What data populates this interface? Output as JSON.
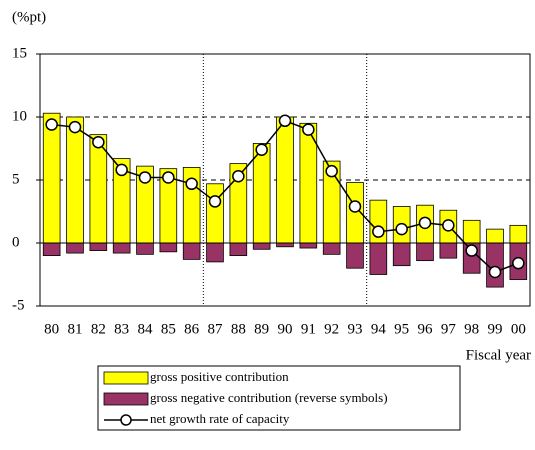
{
  "chart_data": {
    "type": "bar",
    "y_label": "(%pt)",
    "x_label": "Fiscal year",
    "categories": [
      "80",
      "81",
      "82",
      "83",
      "84",
      "85",
      "86",
      "87",
      "88",
      "89",
      "90",
      "91",
      "92",
      "93",
      "94",
      "95",
      "96",
      "97",
      "98",
      "99",
      "00"
    ],
    "series": [
      {
        "name": "gross positive contribution",
        "type": "bar",
        "color": "#ffff00",
        "values": [
          10.3,
          10.0,
          8.6,
          6.7,
          6.1,
          5.9,
          6.0,
          4.7,
          6.3,
          7.9,
          10.0,
          9.5,
          6.5,
          4.8,
          3.4,
          2.9,
          3.0,
          2.6,
          1.8,
          1.1,
          1.4
        ]
      },
      {
        "name": "gross negative contribution (reverse symbols)",
        "type": "bar",
        "color": "#993366",
        "values": [
          -1.0,
          -0.8,
          -0.6,
          -0.8,
          -0.9,
          -0.7,
          -1.3,
          -1.5,
          -1.0,
          -0.5,
          -0.3,
          -0.4,
          -0.9,
          -2.0,
          -2.5,
          -1.8,
          -1.4,
          -1.2,
          -2.4,
          -3.5,
          -2.9
        ]
      },
      {
        "name": "net growth rate of capacity",
        "type": "line",
        "color": "#000000",
        "values": [
          9.4,
          9.2,
          8.0,
          5.8,
          5.2,
          5.2,
          4.7,
          3.3,
          5.3,
          7.4,
          9.7,
          9.0,
          5.7,
          2.9,
          0.9,
          1.1,
          1.6,
          1.4,
          -0.6,
          -2.3,
          -1.6
        ]
      }
    ],
    "ylim": [
      -5,
      15
    ],
    "yticks": [
      -5,
      0,
      5,
      10,
      15
    ],
    "grid": true
  }
}
